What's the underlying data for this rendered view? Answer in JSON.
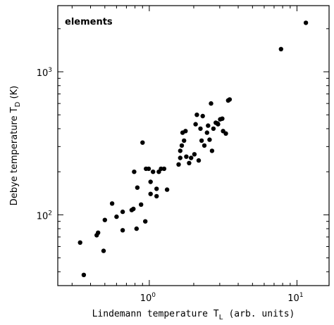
{
  "chart_data": {
    "type": "scatter",
    "legend": "elements",
    "legend_position": "top-left",
    "xlabel": {
      "main": "Lindemann temperature T",
      "sub": "L",
      "tail": " (arb. units)"
    },
    "ylabel": {
      "main": "Debye temperature T",
      "sub": "D",
      "tail": " (K)"
    },
    "x_scale": "log",
    "y_scale": "log",
    "xlim": [
      0.24,
      16.5
    ],
    "ylim": [
      32,
      2900
    ],
    "x_ticks": [
      {
        "base": "10",
        "exp": "0",
        "value": 1
      },
      {
        "base": "10",
        "exp": "1",
        "value": 10
      }
    ],
    "y_ticks": [
      {
        "base": "10",
        "exp": "2",
        "value": 100
      },
      {
        "base": "10",
        "exp": "3",
        "value": 1000
      }
    ],
    "grid": false,
    "marker_color": "#000000",
    "points": [
      [
        0.34,
        64
      ],
      [
        0.36,
        38
      ],
      [
        0.44,
        72
      ],
      [
        0.45,
        75
      ],
      [
        0.49,
        56
      ],
      [
        0.5,
        92
      ],
      [
        0.56,
        120
      ],
      [
        0.6,
        97
      ],
      [
        0.66,
        105
      ],
      [
        0.66,
        78
      ],
      [
        0.76,
        108
      ],
      [
        0.78,
        110
      ],
      [
        0.79,
        200
      ],
      [
        0.82,
        80
      ],
      [
        0.83,
        155
      ],
      [
        0.88,
        118
      ],
      [
        0.9,
        320
      ],
      [
        0.94,
        90
      ],
      [
        0.95,
        210
      ],
      [
        0.99,
        210
      ],
      [
        1.02,
        170
      ],
      [
        1.02,
        140
      ],
      [
        1.06,
        200
      ],
      [
        1.12,
        135
      ],
      [
        1.12,
        152
      ],
      [
        1.16,
        200
      ],
      [
        1.2,
        210
      ],
      [
        1.26,
        210
      ],
      [
        1.32,
        150
      ],
      [
        1.58,
        225
      ],
      [
        1.62,
        280
      ],
      [
        1.62,
        250
      ],
      [
        1.66,
        305
      ],
      [
        1.68,
        375
      ],
      [
        1.72,
        330
      ],
      [
        1.76,
        385
      ],
      [
        1.78,
        255
      ],
      [
        1.86,
        230
      ],
      [
        1.92,
        250
      ],
      [
        2.02,
        265
      ],
      [
        2.06,
        430
      ],
      [
        2.1,
        500
      ],
      [
        2.16,
        240
      ],
      [
        2.22,
        400
      ],
      [
        2.26,
        330
      ],
      [
        2.3,
        490
      ],
      [
        2.36,
        305
      ],
      [
        2.46,
        375
      ],
      [
        2.5,
        420
      ],
      [
        2.56,
        335
      ],
      [
        2.62,
        600
      ],
      [
        2.66,
        280
      ],
      [
        2.72,
        400
      ],
      [
        2.82,
        440
      ],
      [
        2.9,
        435
      ],
      [
        2.92,
        430
      ],
      [
        3.02,
        465
      ],
      [
        3.12,
        470
      ],
      [
        3.16,
        385
      ],
      [
        3.3,
        370
      ],
      [
        3.42,
        630
      ],
      [
        3.5,
        640
      ],
      [
        7.8,
        1440
      ],
      [
        11.5,
        2200
      ]
    ]
  }
}
